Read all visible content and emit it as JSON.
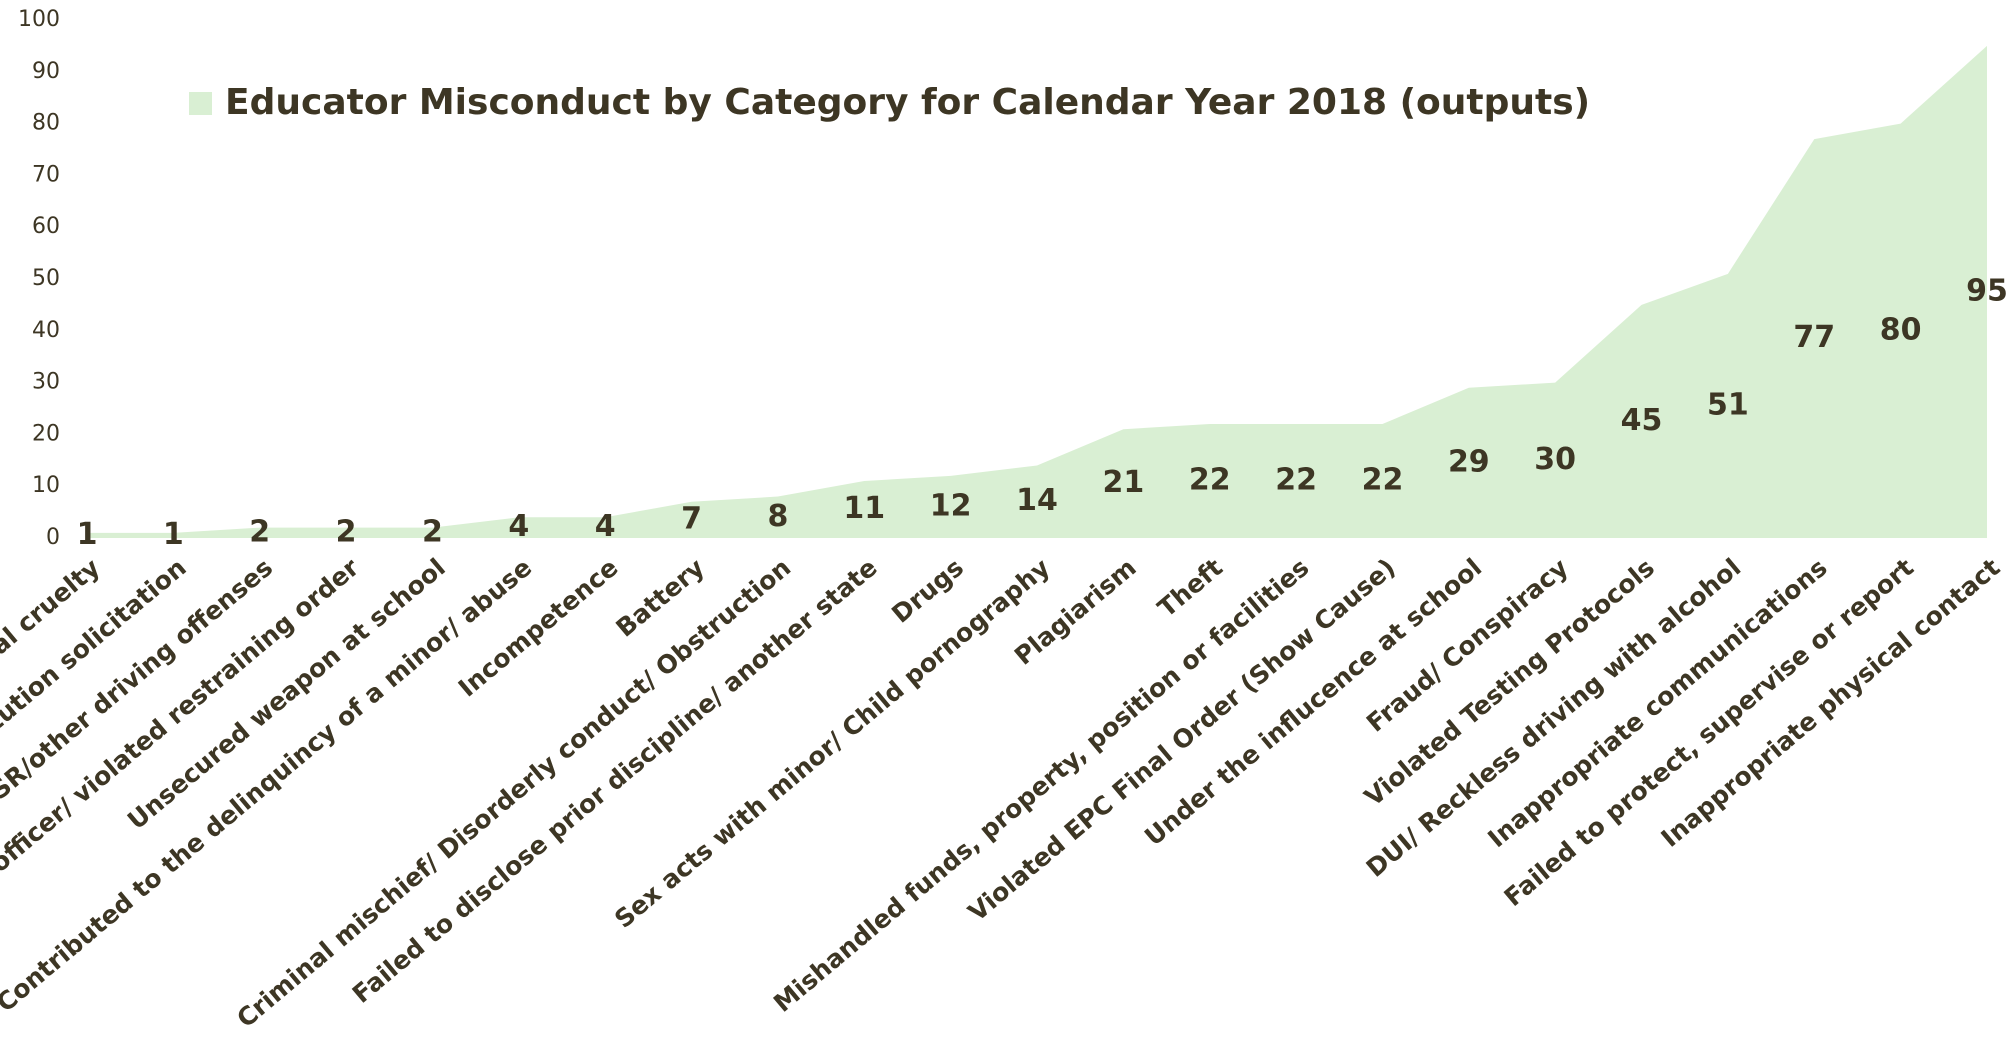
{
  "chart_data": {
    "type": "area",
    "series": [
      {
        "name": "Educator Misconduct by Category for Calendar Year 2018 (outputs)",
        "color": "#d9efd3",
        "values": [
          1,
          1,
          2,
          2,
          2,
          4,
          4,
          7,
          8,
          11,
          12,
          14,
          21,
          22,
          22,
          22,
          29,
          30,
          45,
          51,
          77,
          80,
          95
        ]
      }
    ],
    "categories": [
      "al cruelty",
      "itution solicitation",
      "WLSR/other driving offenses",
      "sted officer/ violated restraining order",
      "Unsecured weapon at school",
      "Contributed to the delinquincy of a minor/ abuse",
      "Incompetence",
      "Battery",
      "Criminal mischief/ Disorderly conduct/ Obstruction",
      "Failed to disclose prior discipline/ another state",
      "Drugs",
      "Sex acts with minor/ Child pornography",
      "Plagiarism",
      "Theft",
      "Mishandled funds, property, position or facilities",
      "Violated EPC Final Order (Show Cause)",
      "Under the influcence at school",
      "Fraud/ Conspiracy",
      "Violated Testing Protocols",
      "DUI/ Reckless driving with alcohol",
      "Inappropriate communications",
      "Failed to protect, supervise or report",
      "Inappropriate physical contact"
    ],
    "ylim": [
      0,
      100
    ],
    "yticks": [
      0,
      10,
      20,
      30,
      40,
      50,
      60,
      70,
      80,
      90,
      100
    ],
    "grid": false,
    "legend": "top-left"
  }
}
